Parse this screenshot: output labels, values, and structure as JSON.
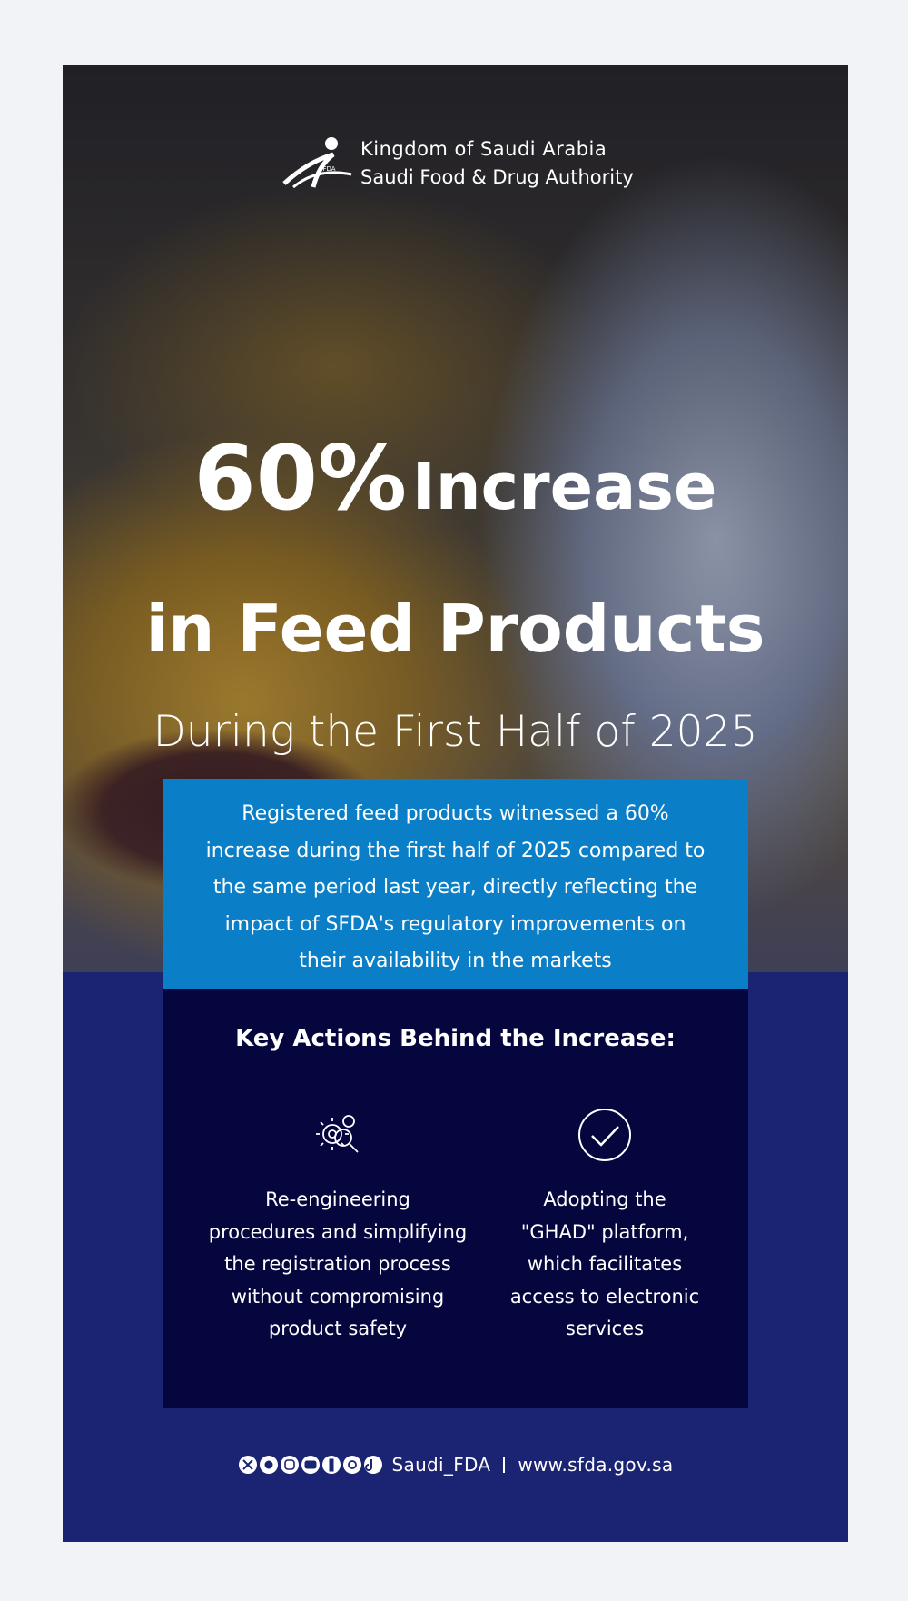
{
  "header": {
    "org_lines": [
      "Kingdom of Saudi Arabia",
      "Saudi Food & Drug Authority"
    ]
  },
  "headline": {
    "lines": [
      "60%",
      "Increase",
      "in Feed Products"
    ]
  },
  "subtitle": "During the First Half of 2025",
  "summary": {
    "lines": [
      "Registered feed products witnessed a 60%",
      "increase during the first half of 2025 compared to",
      "the same period last year, directly reflecting the",
      "impact of SFDA's regulatory improvements on",
      "their availability in the markets"
    ]
  },
  "actions": {
    "title": "Key Actions Behind the Increase:",
    "items": [
      {
        "lines": [
          "Re-engineering",
          "procedures and simplifying",
          "the registration process",
          "without compromising",
          "product safety"
        ]
      },
      {
        "lines": [
          "Adopting the",
          "\"GHAD\" platform,",
          "which facilitates",
          "access to electronic",
          "services"
        ]
      }
    ]
  },
  "footer": {
    "handle": "Saudi_FDA",
    "website": "www.sfda.gov.sa"
  }
}
